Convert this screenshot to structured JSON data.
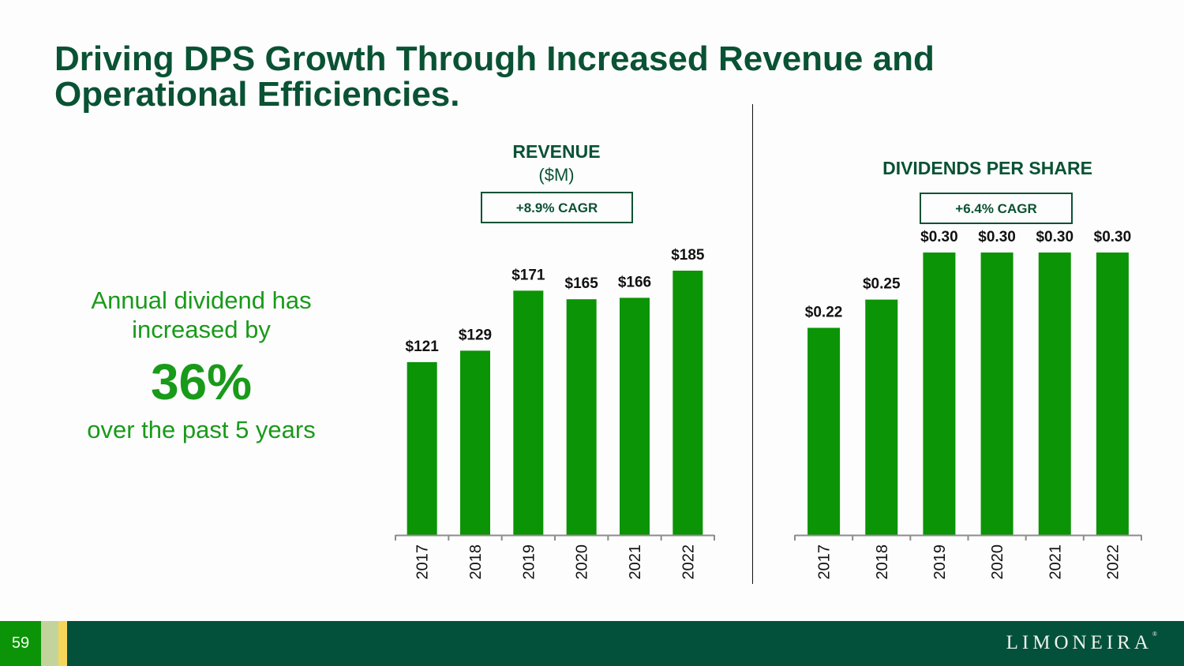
{
  "slide": {
    "title_lines": [
      "Driving DPS Growth Through Increased Revenue and",
      "Operational Efficiencies."
    ],
    "page_number": "59",
    "logo_text": "LIMONEIRA",
    "logo_mark": "®",
    "colors": {
      "title": "#0a5234",
      "bar": "#0b9405",
      "callout": "#199a1a",
      "footer": "#03513a",
      "page_block": "#0c9408",
      "stripe_light": "#c3d39c",
      "stripe_yellow": "#f6d65a"
    }
  },
  "callout": {
    "line1": "Annual dividend has",
    "line2": "increased by",
    "big": "36%",
    "line3": "over the past 5 years"
  },
  "chart_data": [
    {
      "type": "bar",
      "title": "REVENUE",
      "subtitle": "($M)",
      "annotation": "+8.9% CAGR",
      "categories": [
        "2017",
        "2018",
        "2019",
        "2020",
        "2021",
        "2022"
      ],
      "values": [
        121,
        129,
        171,
        165,
        166,
        185
      ],
      "data_labels": [
        "$121",
        "$129",
        "$171",
        "$165",
        "$166",
        "$185"
      ],
      "xlabel": "",
      "ylabel": "",
      "ylim": [
        0,
        185
      ],
      "grid": false,
      "legend": "none"
    },
    {
      "type": "bar",
      "title": "DIVIDENDS PER SHARE",
      "subtitle": "",
      "annotation": "+6.4% CAGR",
      "categories": [
        "2017",
        "2018",
        "2019",
        "2020",
        "2021",
        "2022"
      ],
      "values": [
        0.22,
        0.25,
        0.3,
        0.3,
        0.3,
        0.3
      ],
      "data_labels": [
        "$0.22",
        "$0.25",
        "$0.30",
        "$0.30",
        "$0.30",
        "$0.30"
      ],
      "xlabel": "",
      "ylabel": "",
      "ylim": [
        0,
        0.3
      ],
      "grid": false,
      "legend": "none"
    }
  ]
}
